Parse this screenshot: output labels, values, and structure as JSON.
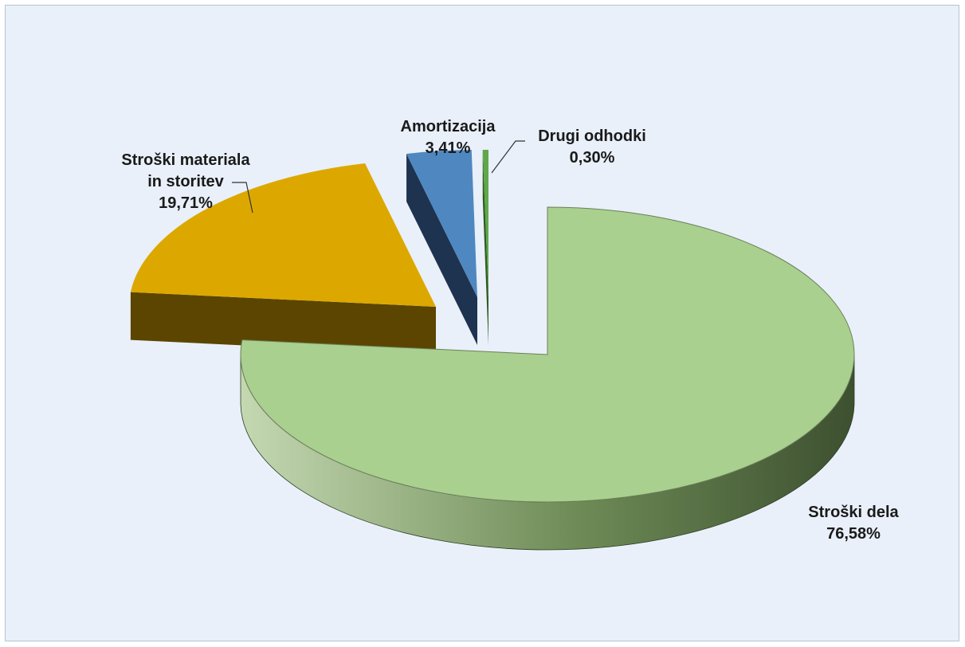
{
  "chart_data": {
    "type": "pie",
    "style": "3d-exploded",
    "title": "",
    "slices": [
      {
        "label": [
          "Stroški dela"
        ],
        "value_label": "76,58%",
        "value": 76.58,
        "color": "#a9d08e",
        "side_color": "#5e7a48"
      },
      {
        "label": [
          "Stroški materiala",
          "in storitev"
        ],
        "value_label": "19,71%",
        "value": 19.71,
        "color": "#dca800",
        "side_color": "#5b4500"
      },
      {
        "label": [
          "Amortizacija"
        ],
        "value_label": "3,41%",
        "value": 3.41,
        "color": "#4f88c0",
        "side_color": "#1d3350"
      },
      {
        "label": [
          "Drugi odhodki"
        ],
        "value_label": "0,30%",
        "value": 0.3,
        "color": "#5fa84a",
        "side_color": "#2f5a25"
      }
    ],
    "background": "#e9f0f9",
    "legend": "none"
  }
}
